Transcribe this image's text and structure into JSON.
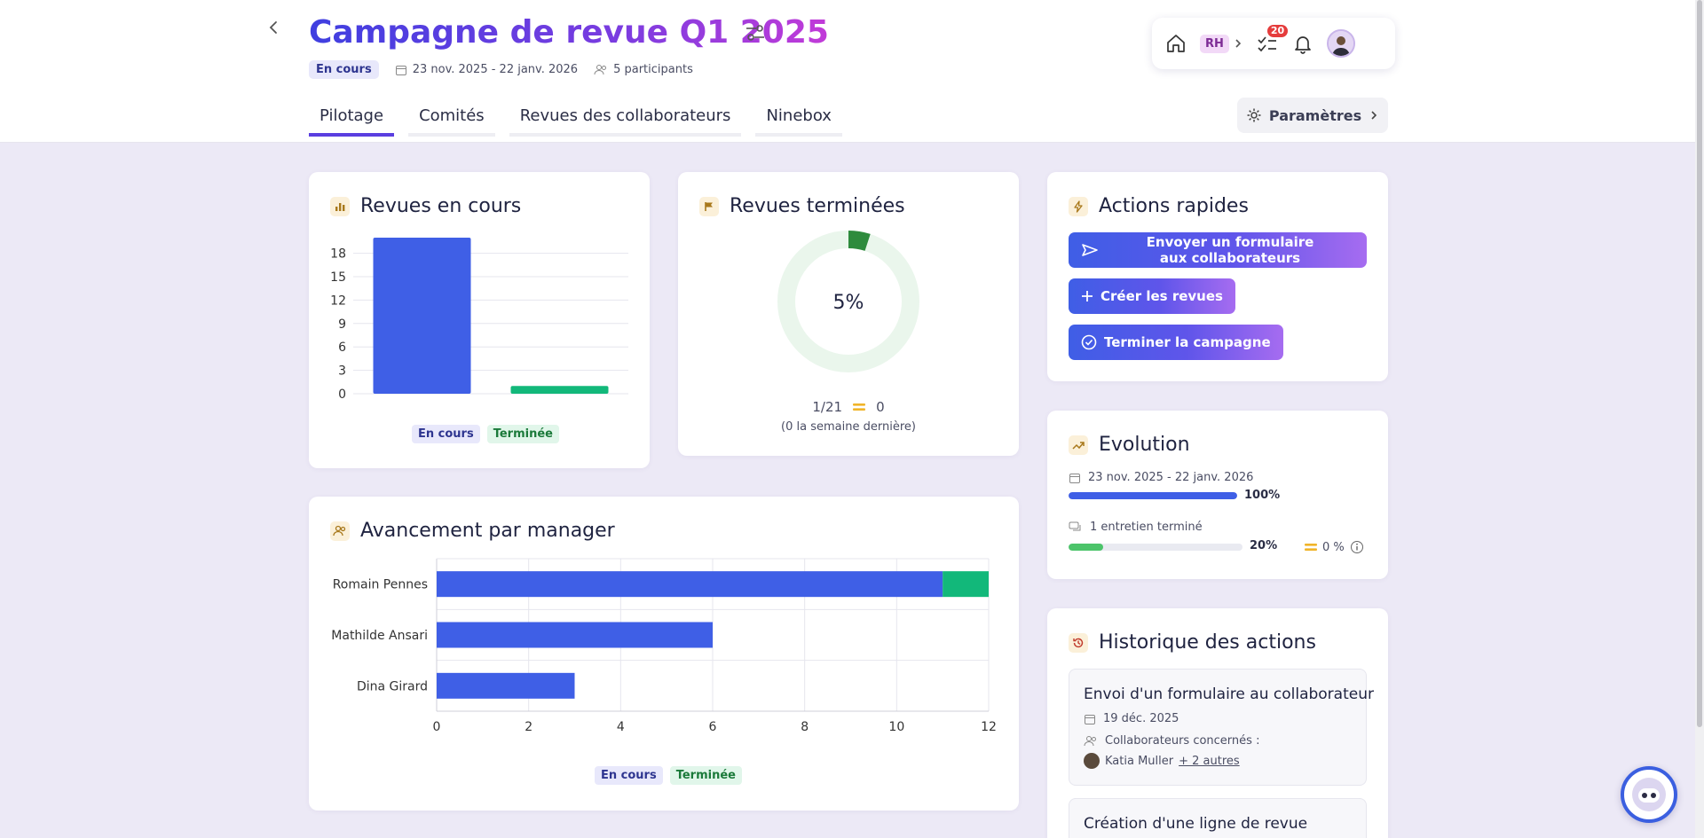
{
  "header": {
    "title": "Campagne de revue Q1 2025",
    "status": "En cours",
    "date_range": "23 nov. 2025 - 22 janv. 2026",
    "participants": "5 participants",
    "tabs": [
      "Pilotage",
      "Comités",
      "Revues des collaborateurs",
      "Ninebox"
    ],
    "active_tab": 0,
    "settings_label": "Paramètres"
  },
  "topbar": {
    "rh_label": "RH",
    "tasks_count": "20",
    "icons": [
      "home-icon",
      "checklist-icon",
      "bell-icon"
    ]
  },
  "revues_en_cours": {
    "title": "Revues en cours",
    "chart_data": {
      "type": "bar",
      "categories": [
        "En cours",
        "Terminée"
      ],
      "values": [
        20,
        1
      ],
      "yticks": [
        0,
        3,
        6,
        9,
        12,
        15,
        18
      ],
      "ylim": [
        0,
        20
      ],
      "colors": [
        "#3f5fe6",
        "#12b87a"
      ],
      "legend": [
        "En cours",
        "Terminée"
      ]
    }
  },
  "revues_terminees": {
    "title": "Revues terminées",
    "percent_label": "5%",
    "percent": 0.05,
    "ratio": "1/21",
    "delta": "0",
    "delta_note": "(0 la semaine dernière)"
  },
  "actions_rapides": {
    "title": "Actions rapides",
    "buttons": [
      "Envoyer un formulaire aux collaborateurs",
      "Créer les revues",
      "Terminer la campagne"
    ]
  },
  "evolution": {
    "title": "Evolution",
    "date_range": "23 nov. 2025 - 22 janv. 2026",
    "time_progress": 1.0,
    "time_progress_label": "100%",
    "interviews_label": "1 entretien terminé",
    "interviews_progress": 0.2,
    "interviews_progress_label": "20%",
    "delta_label": "0 %"
  },
  "avancement": {
    "title": "Avancement par manager",
    "chart_data": {
      "type": "bar",
      "orientation": "horizontal",
      "stacked": true,
      "categories": [
        "Romain Pennes",
        "Mathilde Ansari",
        "Dina Girard"
      ],
      "series": [
        {
          "name": "En cours",
          "values": [
            11,
            6,
            3
          ]
        },
        {
          "name": "Terminée",
          "values": [
            1,
            0,
            0
          ]
        }
      ],
      "xticks": [
        0,
        2,
        4,
        6,
        8,
        10,
        12
      ],
      "xlim": [
        0,
        12
      ],
      "colors": [
        "#3f5fe6",
        "#12b87a"
      ],
      "legend": [
        "En cours",
        "Terminée"
      ]
    }
  },
  "historique": {
    "title": "Historique des actions",
    "items": [
      {
        "title": "Envoi d'un formulaire au collaborateur",
        "date": "19 déc. 2025",
        "concerned_label": "Collaborateurs concernés :",
        "person": "Katia Muller",
        "others": "+ 2 autres"
      },
      {
        "title": "Création d'une ligne de revue"
      }
    ]
  }
}
